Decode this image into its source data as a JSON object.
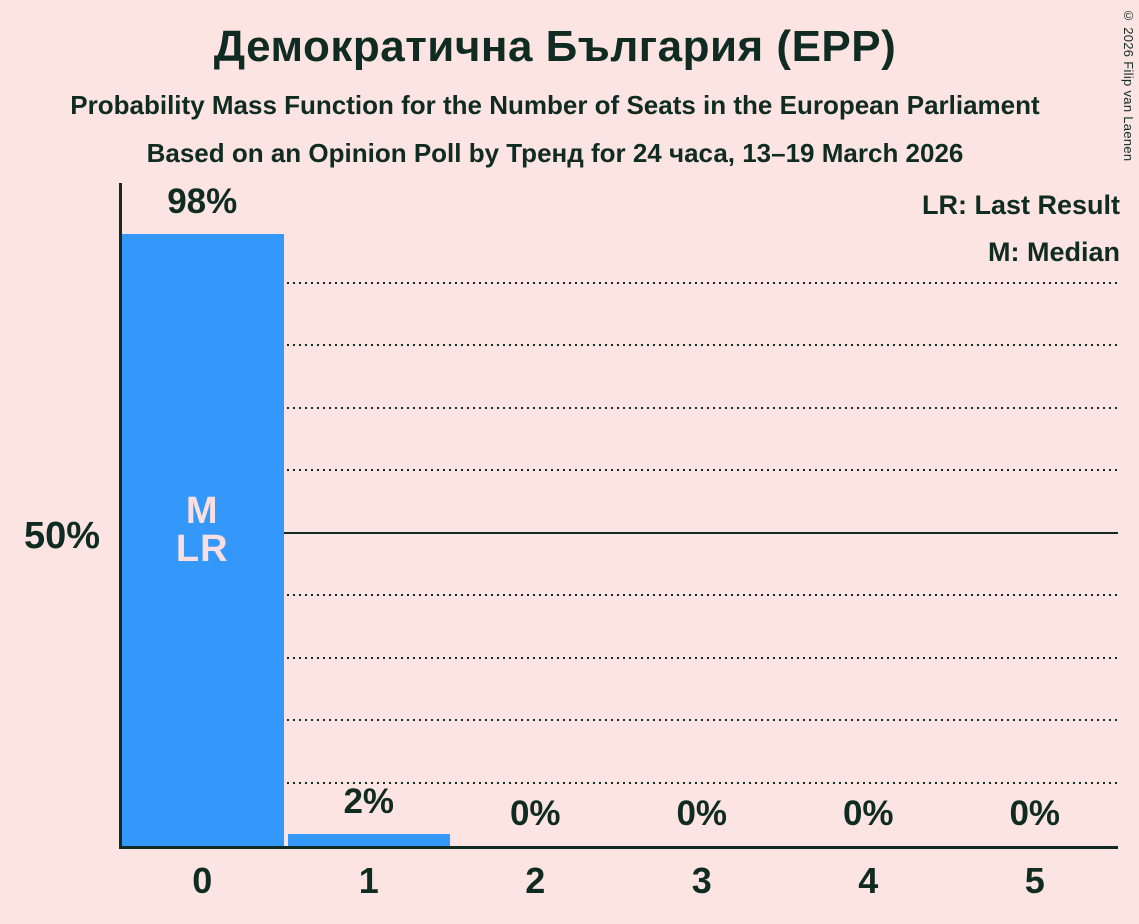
{
  "header": {
    "title": "Демократична България (EPP)",
    "subtitle_line1": "Probability Mass Function for the Number of Seats in the European Parliament",
    "subtitle_line2": "Based on an Opinion Poll by Тренд for 24 часа, 13–19 March 2026"
  },
  "copyright": "© 2026 Filip van Laenen",
  "legend": {
    "last_result": "LR: Last Result",
    "median": "M: Median"
  },
  "colors": {
    "background": "#fce4e3",
    "text": "#0f2b22",
    "bar": "#3498fb",
    "bar_annotation_text": "#f9dfe2"
  },
  "chart_data": {
    "type": "bar",
    "title": "Демократична България (EPP)",
    "categories": [
      "0",
      "1",
      "2",
      "3",
      "4",
      "5"
    ],
    "values": [
      98,
      2,
      0,
      0,
      0,
      0
    ],
    "value_labels": [
      "98%",
      "2%",
      "0%",
      "0%",
      "0%",
      "0%"
    ],
    "bar_annotations": [
      [
        "M",
        "LR"
      ],
      [],
      [],
      [],
      [],
      []
    ],
    "median_seats": 0,
    "last_result_seats": 0,
    "ylim": [
      0,
      100
    ],
    "y_axis_tick_value": 50,
    "y_axis_tick_label": "50%",
    "gridlines_percent": [
      10,
      20,
      30,
      40,
      50,
      60,
      70,
      80,
      90
    ],
    "solid_gridline_percent": 50,
    "grid": "dotted-horizontal",
    "legend_position": "top-right"
  }
}
